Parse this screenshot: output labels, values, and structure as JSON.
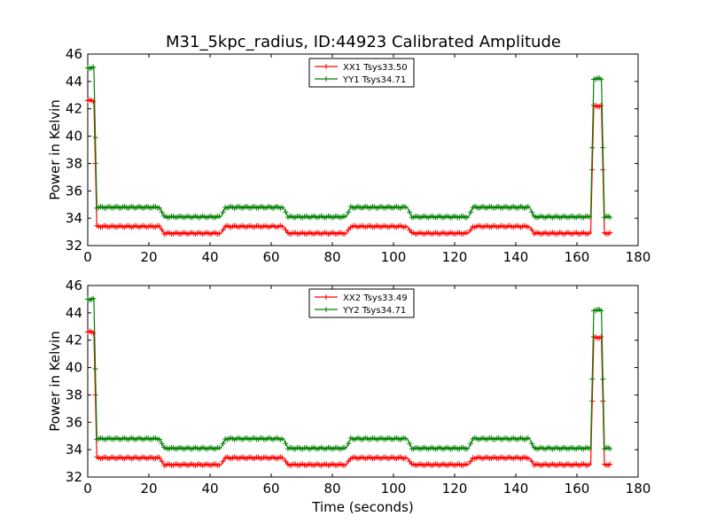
{
  "title": "M31_5kpc_radius, ID:44923 Calibrated Amplitude",
  "colors": {
    "xx": "#ff0000",
    "yy": "#008000"
  },
  "chart_data": [
    {
      "type": "line",
      "xlabel": "",
      "ylabel": "Power in Kelvin",
      "xlim": [
        0,
        180
      ],
      "ylim": [
        32,
        46
      ],
      "xticks": [
        "0",
        "20",
        "40",
        "60",
        "80",
        "100",
        "120",
        "140",
        "160",
        "180"
      ],
      "yticks": [
        "32",
        "34",
        "36",
        "38",
        "40",
        "42",
        "44",
        "46"
      ],
      "legend_position": "top-center",
      "series": [
        {
          "name": "XX1 Tsys33.50",
          "color": "#ff0000",
          "segments": [
            {
              "x0": 0,
              "x1": 2,
              "y": 42.6
            },
            {
              "x0": 3,
              "x1": 23.5,
              "y": 33.4
            },
            {
              "x0": 25,
              "x1": 43.5,
              "y": 32.9
            },
            {
              "x0": 45,
              "x1": 64,
              "y": 33.4
            },
            {
              "x0": 65.5,
              "x1": 84.5,
              "y": 32.9
            },
            {
              "x0": 86,
              "x1": 104.5,
              "y": 33.4
            },
            {
              "x0": 106,
              "x1": 124.5,
              "y": 32.9
            },
            {
              "x0": 126,
              "x1": 144.5,
              "y": 33.4
            },
            {
              "x0": 146,
              "x1": 164.5,
              "y": 32.9
            },
            {
              "x0": 165.5,
              "x1": 168,
              "y": 42.2
            },
            {
              "x0": 169,
              "x1": 171,
              "y": 32.9
            }
          ]
        },
        {
          "name": "YY1 Tsys34.71",
          "color": "#008000",
          "segments": [
            {
              "x0": 0,
              "x1": 2,
              "y": 45.0
            },
            {
              "x0": 3,
              "x1": 23.5,
              "y": 34.8
            },
            {
              "x0": 25,
              "x1": 43.5,
              "y": 34.1
            },
            {
              "x0": 45,
              "x1": 64,
              "y": 34.8
            },
            {
              "x0": 65.5,
              "x1": 84.5,
              "y": 34.1
            },
            {
              "x0": 86,
              "x1": 104.5,
              "y": 34.8
            },
            {
              "x0": 106,
              "x1": 124.5,
              "y": 34.1
            },
            {
              "x0": 126,
              "x1": 144.5,
              "y": 34.8
            },
            {
              "x0": 146,
              "x1": 164.5,
              "y": 34.1
            },
            {
              "x0": 165.5,
              "x1": 168,
              "y": 44.2
            },
            {
              "x0": 169,
              "x1": 171,
              "y": 34.1
            }
          ]
        }
      ]
    },
    {
      "type": "line",
      "xlabel": "Time (seconds)",
      "ylabel": "Power in Kelvin",
      "xlim": [
        0,
        180
      ],
      "ylim": [
        32,
        46
      ],
      "xticks": [
        "0",
        "20",
        "40",
        "60",
        "80",
        "100",
        "120",
        "140",
        "160",
        "180"
      ],
      "yticks": [
        "32",
        "34",
        "36",
        "38",
        "40",
        "42",
        "44",
        "46"
      ],
      "legend_position": "top-center",
      "series": [
        {
          "name": "XX2 Tsys33.49",
          "color": "#ff0000",
          "segments": [
            {
              "x0": 0,
              "x1": 2,
              "y": 42.6
            },
            {
              "x0": 3,
              "x1": 23.5,
              "y": 33.4
            },
            {
              "x0": 25,
              "x1": 43.5,
              "y": 32.9
            },
            {
              "x0": 45,
              "x1": 64,
              "y": 33.4
            },
            {
              "x0": 65.5,
              "x1": 84.5,
              "y": 32.9
            },
            {
              "x0": 86,
              "x1": 104.5,
              "y": 33.4
            },
            {
              "x0": 106,
              "x1": 124.5,
              "y": 32.9
            },
            {
              "x0": 126,
              "x1": 144.5,
              "y": 33.4
            },
            {
              "x0": 146,
              "x1": 164.5,
              "y": 32.9
            },
            {
              "x0": 165.5,
              "x1": 168,
              "y": 42.2
            },
            {
              "x0": 169,
              "x1": 171,
              "y": 32.9
            }
          ]
        },
        {
          "name": "YY2 Tsys34.71",
          "color": "#008000",
          "segments": [
            {
              "x0": 0,
              "x1": 2,
              "y": 45.0
            },
            {
              "x0": 3,
              "x1": 23.5,
              "y": 34.8
            },
            {
              "x0": 25,
              "x1": 43.5,
              "y": 34.1
            },
            {
              "x0": 45,
              "x1": 64,
              "y": 34.8
            },
            {
              "x0": 65.5,
              "x1": 84.5,
              "y": 34.1
            },
            {
              "x0": 86,
              "x1": 104.5,
              "y": 34.8
            },
            {
              "x0": 106,
              "x1": 124.5,
              "y": 34.1
            },
            {
              "x0": 126,
              "x1": 144.5,
              "y": 34.8
            },
            {
              "x0": 146,
              "x1": 164.5,
              "y": 34.1
            },
            {
              "x0": 165.5,
              "x1": 168,
              "y": 44.2
            },
            {
              "x0": 169,
              "x1": 171,
              "y": 34.1
            }
          ]
        }
      ]
    }
  ]
}
